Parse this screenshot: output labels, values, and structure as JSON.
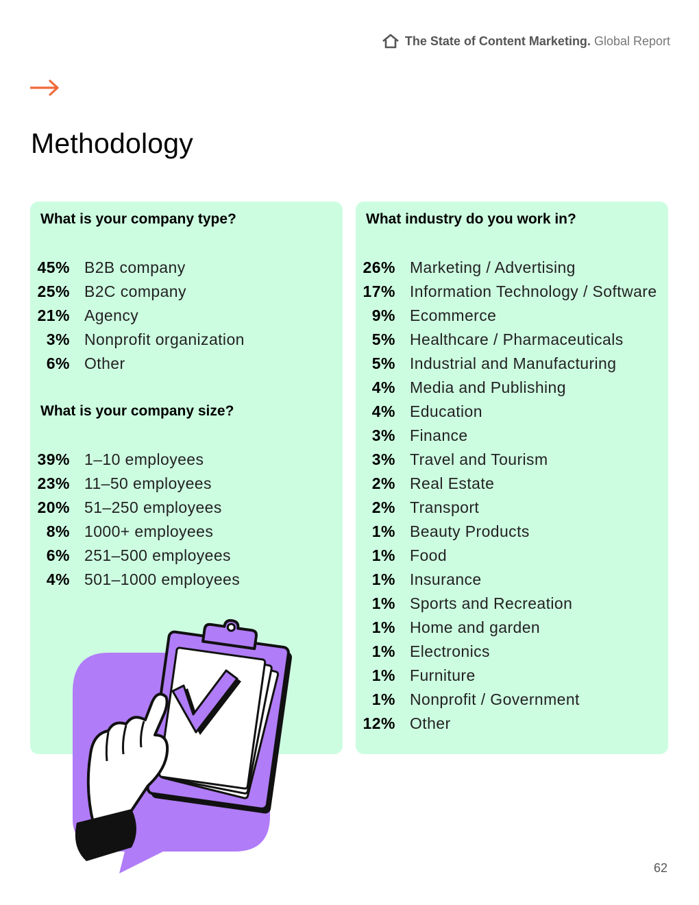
{
  "header": {
    "icon": "home-icon",
    "title_bold": "The State of Content Marketing.",
    "title_light": "Global Report"
  },
  "accent_color": "#ef6a3a",
  "card_color": "#cdfde1",
  "illustration_color": "#b07cf7",
  "page_title": "Methodology",
  "company_type": {
    "question": "What is your company type?",
    "items": [
      {
        "pct": "45%",
        "label": "B2B company"
      },
      {
        "pct": "25%",
        "label": "B2C company"
      },
      {
        "pct": "21%",
        "label": "Agency"
      },
      {
        "pct": "3%",
        "label": "Nonprofit organization"
      },
      {
        "pct": "6%",
        "label": "Other"
      }
    ]
  },
  "company_size": {
    "question": "What is your company size?",
    "items": [
      {
        "pct": "39%",
        "label": "1–10 employees"
      },
      {
        "pct": "23%",
        "label": "11–50 employees"
      },
      {
        "pct": "20%",
        "label": "51–250 employees"
      },
      {
        "pct": "8%",
        "label": "1000+ employees"
      },
      {
        "pct": "6%",
        "label": "251–500 employees"
      },
      {
        "pct": "4%",
        "label": "501–1000 employees"
      }
    ]
  },
  "industry": {
    "question": "What industry do you work in?",
    "items": [
      {
        "pct": "26%",
        "label": "Marketing / Advertising"
      },
      {
        "pct": "17%",
        "label": "Information Technology / Software"
      },
      {
        "pct": "9%",
        "label": "Ecommerce"
      },
      {
        "pct": "5%",
        "label": "Healthcare / Pharmaceuticals"
      },
      {
        "pct": "5%",
        "label": "Industrial and Manufacturing"
      },
      {
        "pct": "4%",
        "label": "Media and Publishing"
      },
      {
        "pct": "4%",
        "label": "Education"
      },
      {
        "pct": "3%",
        "label": "Finance"
      },
      {
        "pct": "3%",
        "label": "Travel and Tourism"
      },
      {
        "pct": "2%",
        "label": "Real Estate"
      },
      {
        "pct": "2%",
        "label": "Transport"
      },
      {
        "pct": "1%",
        "label": "Beauty Products"
      },
      {
        "pct": "1%",
        "label": "Food"
      },
      {
        "pct": "1%",
        "label": "Insurance"
      },
      {
        "pct": "1%",
        "label": "Sports and Recreation"
      },
      {
        "pct": "1%",
        "label": "Home and garden"
      },
      {
        "pct": "1%",
        "label": "Electronics"
      },
      {
        "pct": "1%",
        "label": "Furniture"
      },
      {
        "pct": "1%",
        "label": "Nonprofit / Government"
      },
      {
        "pct": "12%",
        "label": "Other"
      }
    ]
  },
  "page_number": "62"
}
